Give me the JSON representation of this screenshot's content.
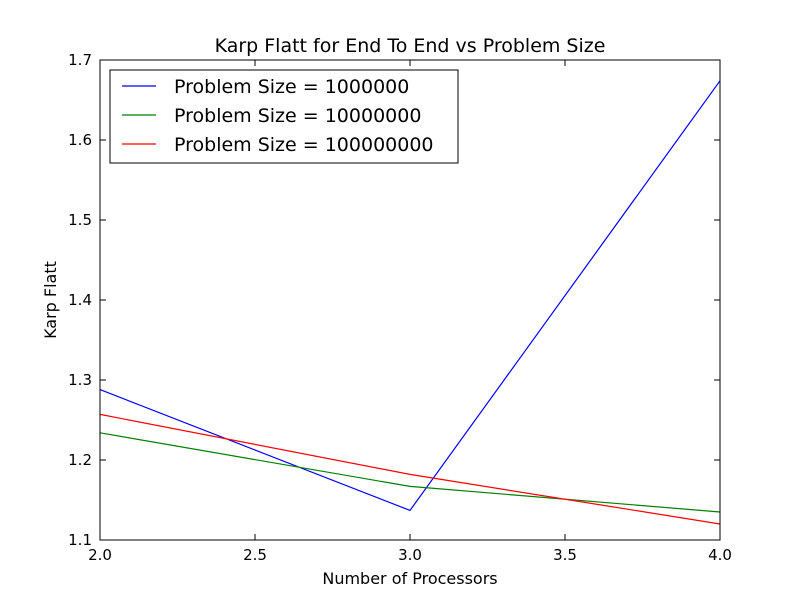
{
  "chart_data": {
    "type": "line",
    "title": "Karp Flatt for End To End vs Problem Size",
    "xlabel": "Number of Processors",
    "ylabel": "Karp Flatt",
    "xlim": [
      2.0,
      4.0
    ],
    "ylim": [
      1.1,
      1.7
    ],
    "xticks": [
      "2.0",
      "2.5",
      "3.0",
      "3.5",
      "4.0"
    ],
    "yticks": [
      "1.1",
      "1.2",
      "1.3",
      "1.4",
      "1.5",
      "1.6",
      "1.7"
    ],
    "legend_position": "top-left",
    "grid": false,
    "x": [
      2,
      3,
      4
    ],
    "series": [
      {
        "name": "Problem Size = 1000000",
        "color": "#0000ff",
        "values": [
          1.288,
          1.137,
          1.674
        ]
      },
      {
        "name": "Problem Size = 10000000",
        "color": "#008000",
        "values": [
          1.234,
          1.167,
          1.135
        ]
      },
      {
        "name": "Problem Size = 100000000",
        "color": "#ff0000",
        "values": [
          1.257,
          1.182,
          1.12
        ]
      }
    ]
  }
}
